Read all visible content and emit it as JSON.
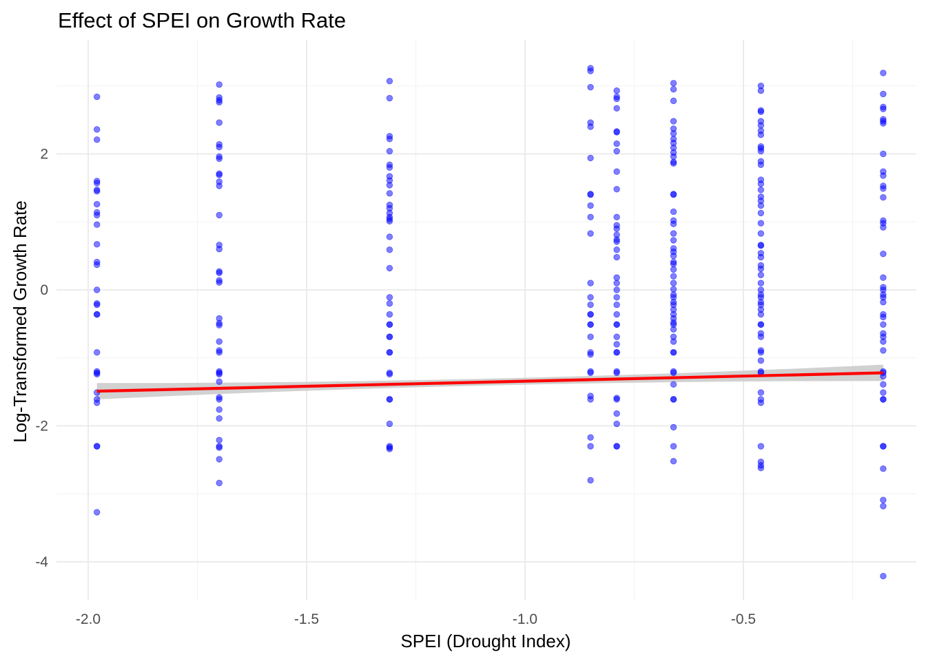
{
  "chart_data": {
    "type": "scatter",
    "title": "Effect of SPEI on Growth Rate",
    "xlabel": "SPEI (Drought Index)",
    "ylabel": "Log-Transformed Growth Rate",
    "xlim": [
      -2.0,
      -0.2
    ],
    "ylim": [
      -4.3,
      3.4
    ],
    "x_ticks": [
      -2.0,
      -1.5,
      -1.0,
      -0.5
    ],
    "x_tick_labels": [
      "-2.0",
      "-1.5",
      "-1.0",
      "-0.5"
    ],
    "y_ticks": [
      -4,
      -2,
      0,
      2
    ],
    "y_tick_labels": [
      "-4",
      "-2",
      "0",
      "2"
    ],
    "grid": true,
    "point_color": "#0000ff",
    "point_opacity": 0.5,
    "fit_color": "#ff0000",
    "band_color": "#cccccc",
    "fit_line": {
      "x": [
        -1.98,
        -0.18
      ],
      "y": [
        -1.49,
        -1.22
      ],
      "band_half_width_ends": 0.12,
      "band_half_width_mid": 0.05
    },
    "series": [
      {
        "x": -1.98,
        "y": [
          2.84,
          2.36,
          2.21,
          1.6,
          1.57,
          1.47,
          1.45,
          1.26,
          1.14,
          1.1,
          0.96,
          0.67,
          0.41,
          0.37,
          0.0,
          -0.2,
          -0.22,
          -0.36,
          -0.36,
          -0.92,
          -1.2,
          -1.22,
          -1.24,
          -1.51,
          -1.61,
          -1.66,
          -2.3,
          -2.3,
          -3.27
        ]
      },
      {
        "x": -1.7,
        "y": [
          3.02,
          2.83,
          2.79,
          2.76,
          2.46,
          2.14,
          2.1,
          1.96,
          1.93,
          1.71,
          1.69,
          1.59,
          1.53,
          1.1,
          0.66,
          0.6,
          0.27,
          0.25,
          0.14,
          0.11,
          -0.42,
          -0.49,
          -0.52,
          -0.76,
          -0.89,
          -0.92,
          -1.2,
          -1.22,
          -1.24,
          -1.35,
          -1.58,
          -1.61,
          -1.76,
          -1.89,
          -2.21,
          -2.3,
          -2.32,
          -2.49,
          -2.84
        ]
      },
      {
        "x": -1.31,
        "y": [
          3.07,
          2.82,
          2.26,
          2.22,
          2.04,
          1.84,
          1.8,
          1.67,
          1.61,
          1.54,
          1.42,
          1.25,
          1.2,
          1.13,
          1.07,
          1.04,
          1.01,
          0.78,
          0.59,
          0.32,
          -0.11,
          -0.2,
          -0.36,
          -0.51,
          -0.51,
          -0.69,
          -0.69,
          -0.92,
          -0.92,
          -1.22,
          -1.24,
          -1.61,
          -1.61,
          -1.97,
          -2.3,
          -2.32,
          -2.34
        ]
      },
      {
        "x": -0.85,
        "y": [
          3.26,
          3.22,
          2.98,
          2.46,
          2.4,
          1.94,
          1.41,
          1.4,
          1.24,
          1.07,
          0.83,
          0.1,
          -0.11,
          -0.22,
          -0.36,
          -0.36,
          -0.51,
          -0.51,
          -0.69,
          -0.92,
          -0.95,
          -1.2,
          -1.22,
          -1.56,
          -1.61,
          -2.17,
          -2.3,
          -2.8
        ]
      },
      {
        "x": -0.79,
        "y": [
          2.93,
          2.84,
          2.81,
          2.67,
          2.33,
          2.32,
          2.15,
          2.04,
          1.74,
          1.48,
          1.07,
          0.95,
          0.9,
          0.81,
          0.74,
          0.71,
          0.59,
          0.48,
          0.18,
          0.1,
          0.0,
          -0.11,
          -0.22,
          -0.36,
          -0.51,
          -0.51,
          -0.69,
          -0.8,
          -0.92,
          -0.92,
          -1.2,
          -1.22,
          -1.59,
          -1.61,
          -1.82,
          -1.97,
          -2.3,
          -2.3
        ]
      },
      {
        "x": -0.66,
        "y": [
          3.04,
          2.95,
          2.78,
          2.48,
          2.37,
          2.3,
          2.22,
          2.16,
          2.09,
          2.02,
          1.96,
          1.88,
          1.86,
          1.41,
          1.4,
          1.15,
          1.02,
          0.97,
          0.83,
          0.73,
          0.61,
          0.56,
          0.5,
          0.41,
          0.38,
          0.3,
          0.2,
          0.1,
          0.01,
          -0.07,
          -0.11,
          -0.18,
          -0.22,
          -0.29,
          -0.36,
          -0.42,
          -0.48,
          -0.51,
          -0.58,
          -0.69,
          -0.76,
          -0.92,
          -0.92,
          -1.2,
          -1.22,
          -1.39,
          -1.61,
          -1.61,
          -2.02,
          -2.3,
          -2.52
        ]
      },
      {
        "x": -0.46,
        "y": [
          3.0,
          2.93,
          2.64,
          2.62,
          2.48,
          2.42,
          2.34,
          2.28,
          2.11,
          2.08,
          2.04,
          1.89,
          1.84,
          1.62,
          1.56,
          1.47,
          1.37,
          1.31,
          1.24,
          1.13,
          0.98,
          0.83,
          0.66,
          0.65,
          0.54,
          0.48,
          0.36,
          0.31,
          0.22,
          0.1,
          0.0,
          -0.07,
          -0.11,
          -0.18,
          -0.22,
          -0.29,
          -0.36,
          -0.51,
          -0.51,
          -0.64,
          -0.69,
          -0.89,
          -0.92,
          -1.04,
          -1.2,
          -1.22,
          -1.51,
          -1.61,
          -1.66,
          -2.3,
          -2.53,
          -2.58,
          -2.62
        ]
      },
      {
        "x": -0.18,
        "y": [
          3.19,
          2.88,
          2.69,
          2.66,
          2.51,
          2.48,
          2.45,
          2.0,
          1.74,
          1.68,
          1.53,
          1.49,
          1.36,
          1.02,
          0.98,
          0.92,
          0.53,
          0.18,
          0.04,
          0.0,
          -0.07,
          -0.11,
          -0.18,
          -0.36,
          -0.4,
          -0.51,
          -0.64,
          -0.69,
          -0.76,
          -0.89,
          -1.2,
          -1.22,
          -1.27,
          -1.39,
          -1.51,
          -1.61,
          -1.61,
          -2.3,
          -2.3,
          -2.63,
          -3.09,
          -3.18,
          -4.21
        ]
      }
    ]
  }
}
